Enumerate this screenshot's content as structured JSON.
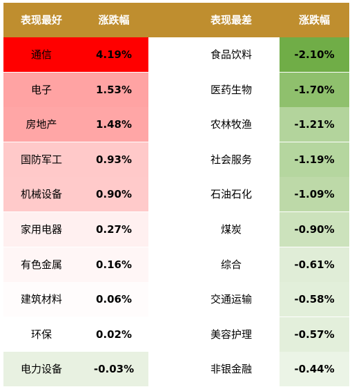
{
  "header": {
    "best_label": "表现最好",
    "best_change_label": "涨跌幅",
    "worst_label": "表现最差",
    "worst_change_label": "涨跌幅"
  },
  "rows": [
    {
      "best_name": "通信",
      "best_value": "4.19%",
      "best_color": "#ff0000",
      "worst_name": "食品饮料",
      "worst_value": "-2.10%",
      "worst_color": "#70ad47"
    },
    {
      "best_name": "电子",
      "best_value": "1.53%",
      "best_color": "#ffa3a3",
      "worst_name": "医药生物",
      "worst_value": "-1.70%",
      "worst_color": "#8fc06d"
    },
    {
      "best_name": "房地产",
      "best_value": "1.48%",
      "best_color": "#ffa6a6",
      "worst_name": "农林牧渔",
      "worst_value": "-1.21%",
      "worst_color": "#b3d49c"
    },
    {
      "best_name": "国防军工",
      "best_value": "0.93%",
      "best_color": "#ffc9c9",
      "worst_name": "社会服务",
      "worst_value": "-1.19%",
      "worst_color": "#b5d69f"
    },
    {
      "best_name": "机械设备",
      "best_value": "0.90%",
      "best_color": "#ffcaca",
      "worst_name": "石油石化",
      "worst_value": "-1.09%",
      "worst_color": "#bdd9a8"
    },
    {
      "best_name": "家用电器",
      "best_value": "0.27%",
      "best_color": "#fff0f0",
      "worst_name": "煤炭",
      "worst_value": "-0.90%",
      "worst_color": "#cce2bc"
    },
    {
      "best_name": "有色金属",
      "best_value": "0.16%",
      "best_color": "#fff6f6",
      "worst_name": "综合",
      "worst_value": "-0.61%",
      "worst_color": "#e0edd7"
    },
    {
      "best_name": "建筑材料",
      "best_value": "0.06%",
      "best_color": "#fffcfc",
      "worst_name": "交通运输",
      "worst_value": "-0.58%",
      "worst_color": "#e2efda"
    },
    {
      "best_name": "环保",
      "best_value": "0.02%",
      "best_color": "#ffffff",
      "worst_name": "美容护理",
      "worst_value": "-0.57%",
      "worst_color": "#e3efdb"
    },
    {
      "best_name": "电力设备",
      "best_value": "-0.03%",
      "best_color": "#e8f1e1",
      "worst_name": "非银金融",
      "worst_value": "-0.44%",
      "worst_color": "#ebf4e6"
    }
  ],
  "colors": {
    "header_bg": "#bf8e2f",
    "header_text": "#ffffff"
  }
}
